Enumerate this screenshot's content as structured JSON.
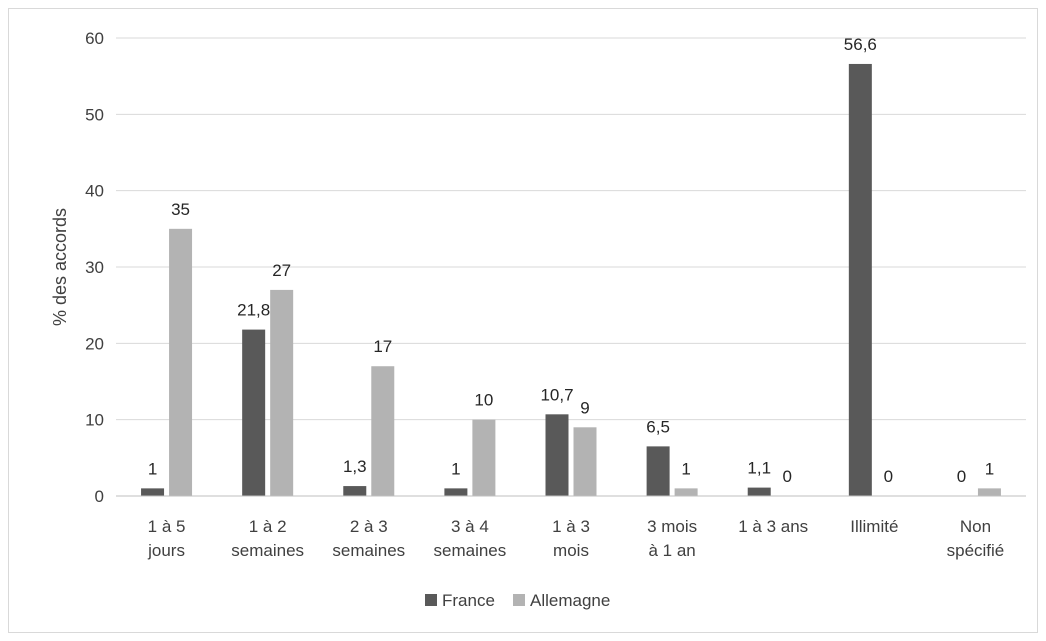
{
  "chart_data": {
    "type": "bar",
    "title": "",
    "xlabel": "",
    "ylabel": "% des accords",
    "ylim": [
      0,
      60
    ],
    "yticks": [
      "0",
      "10",
      "20",
      "30",
      "40",
      "50",
      "60"
    ],
    "grid": true,
    "legend_position": "bottom",
    "categories": [
      [
        "1 à 5",
        "jours"
      ],
      [
        "1 à 2",
        "semaines"
      ],
      [
        "2 à 3",
        "semaines"
      ],
      [
        "3 à 4",
        "semaines"
      ],
      [
        "1 à 3",
        "mois"
      ],
      [
        "3 mois",
        "à 1 an"
      ],
      [
        "1 à 3 ans"
      ],
      [
        "Illimité"
      ],
      [
        "Non",
        "spécifié"
      ]
    ],
    "series": [
      {
        "name": "France",
        "color": "#595959",
        "values": [
          1,
          21.8,
          1.3,
          1,
          10.7,
          6.5,
          1.1,
          56.6,
          0
        ],
        "labels": [
          "1",
          "21,8",
          "1,3",
          "1",
          "10,7",
          "6,5",
          "1,1",
          "56,6",
          "0"
        ]
      },
      {
        "name": "Allemagne",
        "color": "#b3b3b3",
        "values": [
          35,
          27,
          17,
          10,
          9,
          1,
          0,
          0,
          1
        ],
        "labels": [
          "35",
          "27",
          "17",
          "10",
          "9",
          "1",
          "0",
          "0",
          "1"
        ]
      }
    ]
  }
}
